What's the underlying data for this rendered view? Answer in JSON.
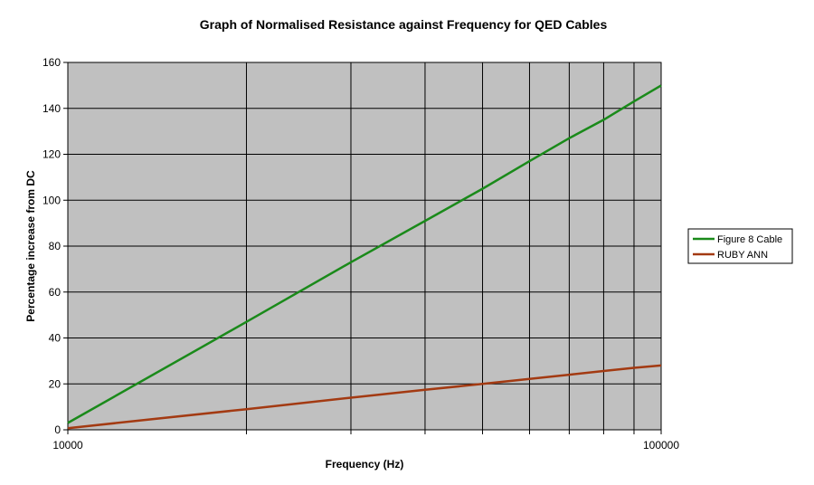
{
  "chart_data": {
    "type": "line",
    "title": "Graph of Normalised Resistance against Frequency for QED Cables",
    "xlabel": "Frequency (Hz)",
    "ylabel": "Percentage increase from DC",
    "x_scale": "log",
    "xlim": [
      10000,
      100000
    ],
    "ylim": [
      0,
      160
    ],
    "x_tick_labels": [
      "10000",
      "100000"
    ],
    "y_ticks": [
      0,
      20,
      40,
      60,
      80,
      100,
      120,
      140,
      160
    ],
    "grid": true,
    "legend_position": "right",
    "series": [
      {
        "name": "Figure 8 Cable",
        "color": "#1a8a1a",
        "x": [
          10000,
          20000,
          30000,
          40000,
          50000,
          60000,
          70000,
          80000,
          90000,
          100000
        ],
        "y": [
          3,
          47,
          73,
          91,
          105,
          117,
          127,
          135,
          143,
          150
        ]
      },
      {
        "name": "RUBY ANN",
        "color": "#a33a12",
        "x": [
          10000,
          20000,
          30000,
          40000,
          50000,
          60000,
          70000,
          80000,
          90000,
          100000
        ],
        "y": [
          0.7,
          9,
          14,
          17.4,
          20,
          22.2,
          24,
          25.6,
          27,
          28
        ]
      }
    ]
  }
}
